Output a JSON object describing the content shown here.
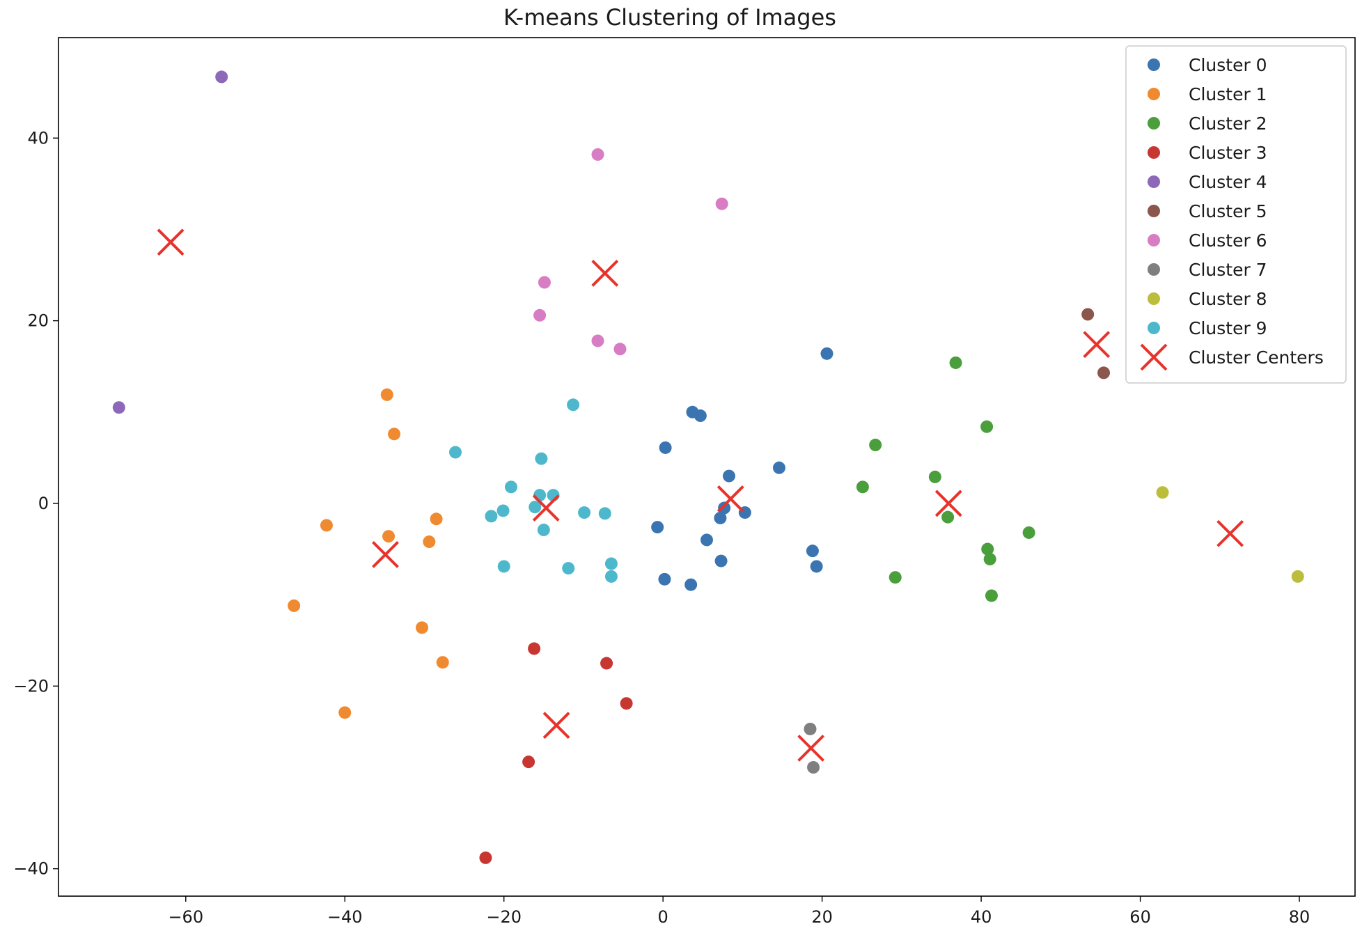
{
  "chart_data": {
    "type": "scatter",
    "title": "K-means Clustering of Images",
    "xlabel": "",
    "ylabel": "",
    "xlim": [
      -76,
      87
    ],
    "ylim": [
      -43,
      51
    ],
    "x_ticks": [
      -60,
      -40,
      -20,
      0,
      20,
      40,
      60,
      80
    ],
    "y_ticks": [
      -40,
      -20,
      0,
      20,
      40
    ],
    "grid": false,
    "legend_position": "top-right",
    "series": [
      {
        "name": "Cluster 0",
        "color": "#3a75b1",
        "marker": "circle",
        "points": [
          [
            20.6,
            16.4
          ],
          [
            3.7,
            10.0
          ],
          [
            4.7,
            9.6
          ],
          [
            0.3,
            6.1
          ],
          [
            14.6,
            3.9
          ],
          [
            8.3,
            3.0
          ],
          [
            10.3,
            -1.0
          ],
          [
            7.7,
            -0.5
          ],
          [
            7.2,
            -1.6
          ],
          [
            -0.7,
            -2.6
          ],
          [
            5.5,
            -4.0
          ],
          [
            7.3,
            -6.3
          ],
          [
            18.8,
            -5.2
          ],
          [
            19.3,
            -6.9
          ],
          [
            0.2,
            -8.3
          ],
          [
            3.5,
            -8.9
          ]
        ]
      },
      {
        "name": "Cluster 1",
        "color": "#f08a30",
        "marker": "circle",
        "points": [
          [
            -34.7,
            11.9
          ],
          [
            -33.8,
            7.6
          ],
          [
            -42.3,
            -2.4
          ],
          [
            -34.5,
            -3.6
          ],
          [
            -28.5,
            -1.7
          ],
          [
            -29.4,
            -4.2
          ],
          [
            -46.4,
            -11.2
          ],
          [
            -30.3,
            -13.6
          ],
          [
            -27.7,
            -17.4
          ],
          [
            -40.0,
            -22.9
          ]
        ]
      },
      {
        "name": "Cluster 2",
        "color": "#4a9e3b",
        "marker": "circle",
        "points": [
          [
            36.8,
            15.4
          ],
          [
            40.7,
            8.4
          ],
          [
            26.7,
            6.4
          ],
          [
            34.2,
            2.9
          ],
          [
            25.1,
            1.8
          ],
          [
            35.8,
            -1.5
          ],
          [
            46.0,
            -3.2
          ],
          [
            40.8,
            -5.0
          ],
          [
            41.1,
            -6.1
          ],
          [
            29.2,
            -8.1
          ],
          [
            41.3,
            -10.1
          ]
        ]
      },
      {
        "name": "Cluster 3",
        "color": "#c83632",
        "marker": "circle",
        "points": [
          [
            -16.2,
            -15.9
          ],
          [
            -7.1,
            -17.5
          ],
          [
            -4.6,
            -21.9
          ],
          [
            -16.9,
            -28.3
          ],
          [
            -22.3,
            -38.8
          ]
        ]
      },
      {
        "name": "Cluster 4",
        "color": "#8d68b8",
        "marker": "circle",
        "points": [
          [
            -55.5,
            46.7
          ],
          [
            -68.4,
            10.5
          ]
        ]
      },
      {
        "name": "Cluster 5",
        "color": "#8b564b",
        "marker": "circle",
        "points": [
          [
            53.4,
            20.7
          ],
          [
            55.4,
            14.3
          ]
        ]
      },
      {
        "name": "Cluster 6",
        "color": "#d87cc3",
        "marker": "circle",
        "points": [
          [
            -8.2,
            38.2
          ],
          [
            7.4,
            32.8
          ],
          [
            -14.9,
            24.2
          ],
          [
            -15.5,
            20.6
          ],
          [
            -8.2,
            17.8
          ],
          [
            -5.4,
            16.9
          ]
        ]
      },
      {
        "name": "Cluster 7",
        "color": "#7f7f7f",
        "marker": "circle",
        "points": [
          [
            18.5,
            -24.7
          ],
          [
            18.9,
            -28.9
          ]
        ]
      },
      {
        "name": "Cluster 8",
        "color": "#bcbd3a",
        "marker": "circle",
        "points": [
          [
            62.8,
            1.2
          ],
          [
            79.8,
            -8.0
          ]
        ]
      },
      {
        "name": "Cluster 9",
        "color": "#4db8cc",
        "marker": "circle",
        "points": [
          [
            -11.3,
            10.8
          ],
          [
            -26.1,
            5.6
          ],
          [
            -15.3,
            4.9
          ],
          [
            -19.1,
            1.8
          ],
          [
            -15.5,
            0.9
          ],
          [
            -13.8,
            0.9
          ],
          [
            -16.1,
            -0.4
          ],
          [
            -20.1,
            -0.8
          ],
          [
            -21.6,
            -1.4
          ],
          [
            -9.9,
            -1.0
          ],
          [
            -7.3,
            -1.1
          ],
          [
            -15.0,
            -2.9
          ],
          [
            -20.0,
            -6.9
          ],
          [
            -11.9,
            -7.1
          ],
          [
            -6.5,
            -6.6
          ],
          [
            -6.5,
            -8.0
          ]
        ]
      },
      {
        "name": "Cluster Centers",
        "color": "#e8332c",
        "marker": "x",
        "points": [
          [
            -61.9,
            28.6
          ],
          [
            -7.3,
            25.2
          ],
          [
            54.5,
            17.4
          ],
          [
            8.5,
            0.5
          ],
          [
            35.9,
            0.0
          ],
          [
            -14.7,
            -0.5
          ],
          [
            71.3,
            -3.3
          ],
          [
            -34.9,
            -5.6
          ],
          [
            -13.4,
            -24.3
          ],
          [
            18.6,
            -26.8
          ]
        ]
      }
    ]
  }
}
